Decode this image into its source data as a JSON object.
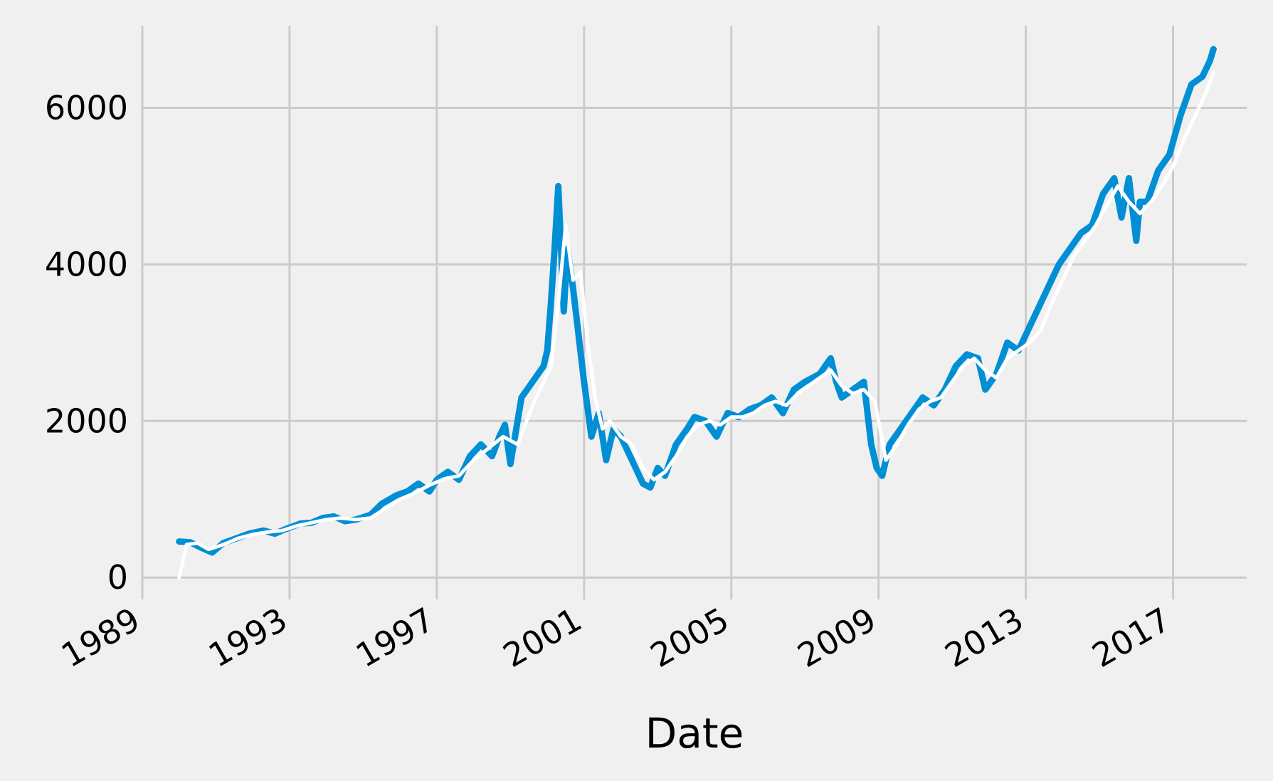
{
  "chart_data": {
    "type": "line",
    "title": "",
    "xlabel": "Date",
    "ylabel": "",
    "grid": true,
    "legend": "none",
    "xlim": [
      1989.0,
      2019.0
    ],
    "ylim": [
      -280,
      7050
    ],
    "x_ticks": [
      1989,
      1993,
      1997,
      2001,
      2005,
      2009,
      2013,
      2017
    ],
    "x_tick_labels": [
      "1989",
      "1993",
      "1997",
      "2001",
      "2005",
      "2009",
      "2013",
      "2017"
    ],
    "y_ticks": [
      0,
      2000,
      4000,
      6000
    ],
    "y_tick_labels": [
      "0",
      "2000",
      "4000",
      "6000"
    ],
    "colors": {
      "background": "#f0f0f0",
      "grid": "#cbcbcb",
      "price": "#008fd5",
      "moving_average": "#ffffff"
    },
    "series": [
      {
        "key": "price",
        "x": [
          1990.0,
          1990.3,
          1990.6,
          1990.9,
          1991.2,
          1991.5,
          1991.9,
          1992.3,
          1992.6,
          1992.9,
          1993.3,
          1993.6,
          1993.9,
          1994.2,
          1994.5,
          1994.8,
          1995.2,
          1995.5,
          1995.9,
          1996.2,
          1996.5,
          1996.8,
          1997.0,
          1997.3,
          1997.6,
          1997.9,
          1998.2,
          1998.5,
          1998.7,
          1998.85,
          1999.0,
          1999.3,
          1999.6,
          1999.9,
          2000.0,
          2000.1,
          2000.2,
          2000.3,
          2000.45,
          2000.55,
          2000.7,
          2000.9,
          2001.0,
          2001.2,
          2001.4,
          2001.6,
          2001.8,
          2002.0,
          2002.3,
          2002.6,
          2002.8,
          2003.0,
          2003.2,
          2003.5,
          2003.8,
          2004.0,
          2004.3,
          2004.6,
          2004.9,
          2005.2,
          2005.5,
          2005.8,
          2006.1,
          2006.4,
          2006.7,
          2007.0,
          2007.4,
          2007.7,
          2007.85,
          2008.0,
          2008.3,
          2008.6,
          2008.8,
          2008.95,
          2009.1,
          2009.3,
          2009.6,
          2009.9,
          2010.2,
          2010.5,
          2010.8,
          2011.1,
          2011.4,
          2011.7,
          2011.9,
          2012.2,
          2012.5,
          2012.8,
          2013.0,
          2013.3,
          2013.6,
          2013.9,
          2014.2,
          2014.5,
          2014.8,
          2015.1,
          2015.4,
          2015.6,
          2015.8,
          2016.0,
          2016.1,
          2016.3,
          2016.6,
          2016.9,
          2017.2,
          2017.5,
          2017.8,
          2018.0,
          2018.1
        ],
        "values": [
          460,
          450,
          380,
          320,
          440,
          490,
          560,
          600,
          560,
          620,
          690,
          700,
          760,
          780,
          720,
          740,
          800,
          940,
          1050,
          1100,
          1200,
          1100,
          1250,
          1350,
          1250,
          1550,
          1700,
          1550,
          1800,
          1950,
          1450,
          2300,
          2500,
          2700,
          2900,
          3500,
          4200,
          5000,
          3400,
          4200,
          3700,
          2900,
          2500,
          1800,
          2100,
          1500,
          1900,
          1800,
          1500,
          1200,
          1150,
          1400,
          1300,
          1700,
          1900,
          2050,
          2000,
          1800,
          2100,
          2050,
          2150,
          2200,
          2300,
          2100,
          2400,
          2500,
          2600,
          2800,
          2500,
          2300,
          2400,
          2500,
          1700,
          1400,
          1300,
          1700,
          1900,
          2100,
          2300,
          2200,
          2400,
          2700,
          2850,
          2800,
          2400,
          2600,
          3000,
          2900,
          3100,
          3400,
          3700,
          4000,
          4200,
          4400,
          4500,
          4900,
          5100,
          4600,
          5100,
          4300,
          4800,
          4800,
          5200,
          5400,
          5900,
          6300,
          6400,
          6600,
          6750
        ]
      },
      {
        "key": "moving_average",
        "x": [
          1990.0,
          1990.1,
          1990.2,
          1990.5,
          1990.8,
          1991.2,
          1991.6,
          1992.0,
          1992.4,
          1992.8,
          1993.2,
          1993.6,
          1994.0,
          1994.4,
          1994.8,
          1995.2,
          1995.6,
          1996.0,
          1996.4,
          1996.8,
          1997.2,
          1997.6,
          1998.0,
          1998.4,
          1998.8,
          1999.2,
          1999.6,
          1999.9,
          2000.1,
          2000.3,
          2000.5,
          2000.7,
          2000.9,
          2001.1,
          2001.3,
          2001.5,
          2001.7,
          2002.0,
          2002.3,
          2002.6,
          2002.9,
          2003.2,
          2003.5,
          2003.8,
          2004.1,
          2004.4,
          2004.7,
          2005.0,
          2005.3,
          2005.6,
          2005.9,
          2006.2,
          2006.5,
          2006.8,
          2007.1,
          2007.4,
          2007.7,
          2008.0,
          2008.3,
          2008.6,
          2008.9,
          2009.2,
          2009.5,
          2009.8,
          2010.1,
          2010.4,
          2010.7,
          2011.0,
          2011.3,
          2011.6,
          2011.9,
          2012.2,
          2012.5,
          2012.8,
          2013.1,
          2013.4,
          2013.7,
          2014.0,
          2014.3,
          2014.6,
          2014.9,
          2015.2,
          2015.5,
          2015.8,
          2016.1,
          2016.4,
          2016.7,
          2017.0,
          2017.3,
          2017.6,
          2017.9,
          2018.1
        ],
        "values": [
          0,
          200,
          420,
          440,
          360,
          420,
          500,
          550,
          580,
          600,
          660,
          700,
          740,
          760,
          740,
          760,
          880,
          1000,
          1080,
          1180,
          1260,
          1300,
          1500,
          1650,
          1800,
          1700,
          2200,
          2500,
          2700,
          3500,
          4500,
          3800,
          3900,
          3000,
          2300,
          1900,
          2000,
          1800,
          1700,
          1400,
          1250,
          1350,
          1550,
          1800,
          1950,
          2000,
          1950,
          2050,
          2050,
          2100,
          2200,
          2250,
          2200,
          2350,
          2450,
          2550,
          2650,
          2450,
          2350,
          2400,
          2250,
          1500,
          1700,
          1950,
          2150,
          2250,
          2300,
          2500,
          2700,
          2800,
          2650,
          2550,
          2800,
          2900,
          3000,
          3150,
          3500,
          3800,
          4100,
          4300,
          4500,
          4750,
          5000,
          4800,
          4650,
          4800,
          5000,
          5250,
          5600,
          5900,
          6200,
          6450
        ]
      }
    ]
  }
}
